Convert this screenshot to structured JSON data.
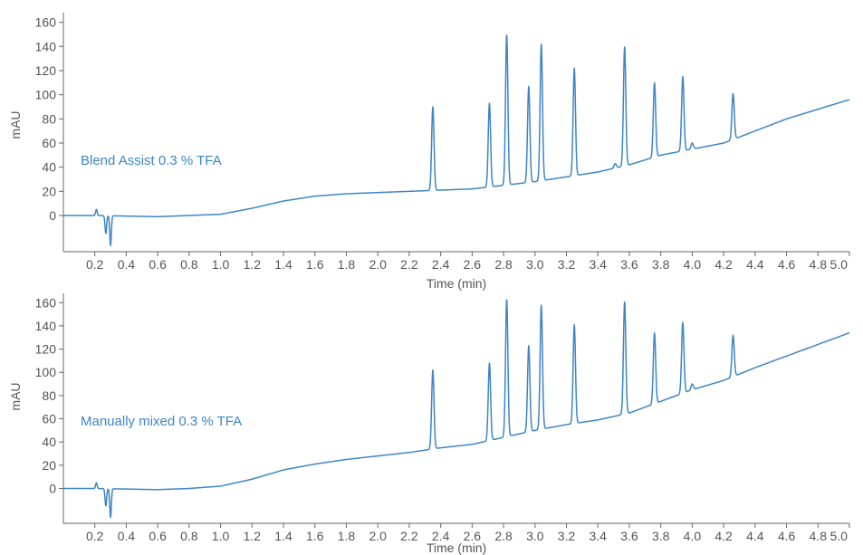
{
  "chart_data": [
    {
      "type": "line",
      "title": "",
      "xlabel": "Time (min)",
      "ylabel": "mAU",
      "xlim": [
        0,
        5.0
      ],
      "ylim": [
        -30,
        168
      ],
      "xticks": [
        0.2,
        0.4,
        0.6,
        0.8,
        1.0,
        1.2,
        1.4,
        1.6,
        1.8,
        2.0,
        2.2,
        2.4,
        2.6,
        2.8,
        3.0,
        3.2,
        3.4,
        3.6,
        3.8,
        4.0,
        4.2,
        4.4,
        4.6,
        4.8,
        5.0
      ],
      "xtick_labels": [
        "0.2",
        "0.4",
        "0.6",
        "0.8",
        "1.0",
        "1.2",
        "1.4",
        "1.6",
        "1.8",
        "2.0",
        "2.2",
        "2.4",
        "2.6",
        "2.8",
        "3.0",
        "3.2",
        "3.4",
        "3.6",
        "3.8",
        "4.0",
        "4.2",
        "4.4",
        "4.6",
        "4.8",
        "5.0"
      ],
      "yticks": [
        0,
        20,
        40,
        60,
        80,
        100,
        120,
        140,
        160
      ],
      "ytick_labels": [
        "0",
        "20",
        "40",
        "60",
        "80",
        "100",
        "120",
        "140",
        "160"
      ],
      "grid": false,
      "color": "#3d85c6",
      "annotation": "Blend Assist 0.3 % TFA",
      "baseline": [
        [
          0,
          0
        ],
        [
          0.2,
          0
        ],
        [
          0.6,
          -1
        ],
        [
          0.8,
          0
        ],
        [
          1.0,
          1
        ],
        [
          1.2,
          6
        ],
        [
          1.4,
          12
        ],
        [
          1.6,
          16
        ],
        [
          1.8,
          18
        ],
        [
          2.0,
          19
        ],
        [
          2.2,
          20
        ],
        [
          2.4,
          21
        ],
        [
          2.6,
          22
        ],
        [
          2.8,
          25
        ],
        [
          3.0,
          28
        ],
        [
          3.2,
          32
        ],
        [
          3.4,
          36
        ],
        [
          3.6,
          42
        ],
        [
          3.8,
          50
        ],
        [
          4.0,
          55
        ],
        [
          4.2,
          60
        ],
        [
          4.4,
          70
        ],
        [
          4.6,
          80
        ],
        [
          4.8,
          88
        ],
        [
          5.0,
          96
        ]
      ],
      "dips": [
        [
          0.21,
          5
        ],
        [
          0.27,
          -15
        ],
        [
          0.3,
          -25
        ]
      ],
      "peaks": [
        [
          2.35,
          90
        ],
        [
          2.71,
          93
        ],
        [
          2.82,
          150
        ],
        [
          2.96,
          107
        ],
        [
          3.04,
          142
        ],
        [
          3.25,
          122
        ],
        [
          3.51,
          43
        ],
        [
          3.57,
          140
        ],
        [
          3.76,
          110
        ],
        [
          3.94,
          115
        ],
        [
          4.0,
          60
        ],
        [
          4.26,
          101
        ]
      ]
    },
    {
      "type": "line",
      "title": "",
      "xlabel": "Time (min)",
      "ylabel": "mAU",
      "xlim": [
        0,
        5.0
      ],
      "ylim": [
        -30,
        168
      ],
      "xticks": [
        0.2,
        0.4,
        0.6,
        0.8,
        1.0,
        1.2,
        1.4,
        1.6,
        1.8,
        2.0,
        2.2,
        2.4,
        2.6,
        2.8,
        3.0,
        3.2,
        3.4,
        3.6,
        3.8,
        4.0,
        4.2,
        4.4,
        4.6,
        4.8,
        5.0
      ],
      "xtick_labels": [
        "0.2",
        "0.4",
        "0.6",
        "0.8",
        "1.0",
        "1.2",
        "1.4",
        "1.6",
        "1.8",
        "2.0",
        "2.2",
        "2.4",
        "2.6",
        "2.8",
        "3.0",
        "3.2",
        "3.4",
        "3.6",
        "3.8",
        "4.0",
        "4.2",
        "4.4",
        "4.6",
        "4.8",
        "5.0"
      ],
      "yticks": [
        0,
        20,
        40,
        60,
        80,
        100,
        120,
        140,
        160
      ],
      "ytick_labels": [
        "0",
        "20",
        "40",
        "60",
        "80",
        "100",
        "120",
        "140",
        "160"
      ],
      "grid": false,
      "color": "#3d85c6",
      "annotation": "Manually mixed 0.3 % TFA",
      "baseline": [
        [
          0,
          0
        ],
        [
          0.2,
          0
        ],
        [
          0.6,
          -1
        ],
        [
          0.8,
          0
        ],
        [
          1.0,
          2
        ],
        [
          1.2,
          8
        ],
        [
          1.4,
          16
        ],
        [
          1.6,
          21
        ],
        [
          1.8,
          25
        ],
        [
          2.0,
          28
        ],
        [
          2.2,
          31
        ],
        [
          2.4,
          35
        ],
        [
          2.6,
          38
        ],
        [
          2.8,
          44
        ],
        [
          3.0,
          50
        ],
        [
          3.2,
          55
        ],
        [
          3.4,
          59
        ],
        [
          3.6,
          65
        ],
        [
          3.8,
          75
        ],
        [
          4.0,
          85
        ],
        [
          4.2,
          93
        ],
        [
          4.4,
          104
        ],
        [
          4.6,
          114
        ],
        [
          4.8,
          124
        ],
        [
          5.0,
          134
        ]
      ],
      "dips": [
        [
          0.21,
          5
        ],
        [
          0.27,
          -15
        ],
        [
          0.3,
          -25
        ]
      ],
      "peaks": [
        [
          2.35,
          102
        ],
        [
          2.71,
          108
        ],
        [
          2.82,
          163
        ],
        [
          2.96,
          123
        ],
        [
          3.04,
          158
        ],
        [
          3.25,
          141
        ],
        [
          3.57,
          161
        ],
        [
          3.76,
          134
        ],
        [
          3.94,
          143
        ],
        [
          4.0,
          90
        ],
        [
          4.26,
          132
        ]
      ]
    }
  ]
}
